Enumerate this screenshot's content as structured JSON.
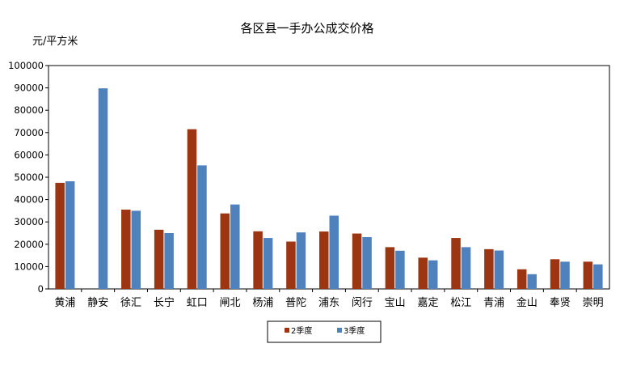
{
  "chart_data": {
    "type": "bar",
    "title": "各区县一手办公成交价格",
    "ylabel": "元/平方米",
    "xlabel": "",
    "ylim": [
      0,
      100000
    ],
    "yticks": [
      0,
      10000,
      20000,
      30000,
      40000,
      50000,
      60000,
      70000,
      80000,
      90000,
      100000
    ],
    "categories": [
      "黄浦",
      "静安",
      "徐汇",
      "长宁",
      "虹口",
      "闸北",
      "杨浦",
      "普陀",
      "浦东",
      "闵行",
      "宝山",
      "嘉定",
      "松江",
      "青浦",
      "金山",
      "奉贤",
      "崇明"
    ],
    "series": [
      {
        "name": "2季度",
        "color": "#9C3511",
        "values": [
          47500,
          null,
          35500,
          26500,
          71500,
          33800,
          25800,
          21200,
          25700,
          24800,
          18700,
          14000,
          22800,
          17800,
          8800,
          13300,
          12200
        ]
      },
      {
        "name": "3季度",
        "color": "#4F81BD",
        "values": [
          48200,
          89800,
          35000,
          25000,
          55300,
          37800,
          22800,
          25300,
          32800,
          23200,
          17100,
          12800,
          18700,
          17200,
          6600,
          12200,
          11000
        ]
      }
    ],
    "grid": false,
    "legend_position": "bottom"
  }
}
